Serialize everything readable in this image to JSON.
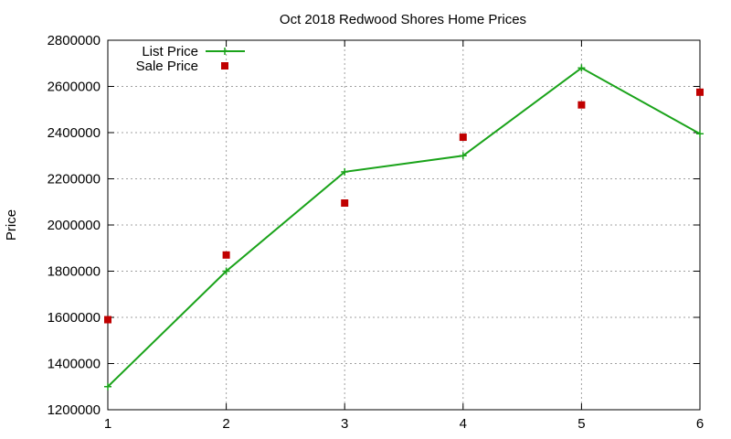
{
  "chart_data": {
    "type": "line",
    "title": "Oct 2018 Redwood Shores Home Prices",
    "xlabel": "",
    "ylabel": "Price",
    "x": [
      1,
      2,
      3,
      4,
      5,
      6
    ],
    "xlim": [
      1,
      6
    ],
    "ylim": [
      1200000,
      2800000
    ],
    "xticks": [
      "1",
      "2",
      "3",
      "4",
      "5",
      "6"
    ],
    "yticks": [
      "1200000",
      "1400000",
      "1600000",
      "1800000",
      "2000000",
      "2200000",
      "2400000",
      "2600000",
      "2800000"
    ],
    "grid": true,
    "legend_position": "top-left",
    "series": [
      {
        "name": "List Price",
        "style": "line-with-plus-markers",
        "color": "#1aa31a",
        "values": [
          1300000,
          1800000,
          2230000,
          2300000,
          2680000,
          2395000
        ]
      },
      {
        "name": "Sale Price",
        "style": "square-points",
        "color": "#c00000",
        "values": [
          1590000,
          1870000,
          2095000,
          2380000,
          2520000,
          2575000
        ]
      }
    ]
  }
}
